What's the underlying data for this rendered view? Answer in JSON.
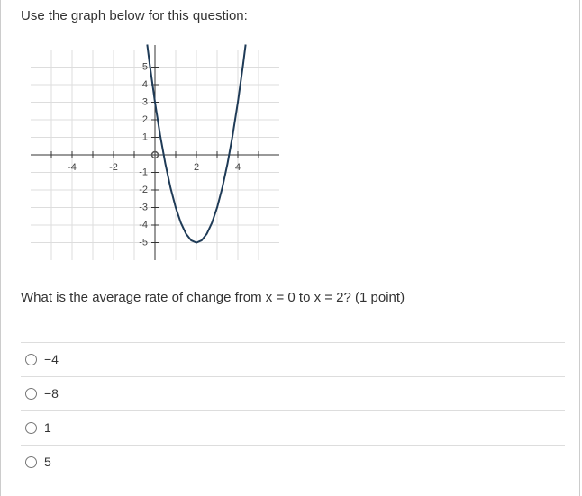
{
  "prompt": "Use the graph below for this question:",
  "graph": {
    "xlim": [
      -6,
      6
    ],
    "ylim": [
      -6,
      6
    ],
    "xticks": [
      -4,
      -2,
      2,
      4
    ],
    "yticks": [
      5,
      4,
      3,
      2,
      1,
      -1,
      -2,
      -3,
      -4,
      -5
    ],
    "grid": [
      -5,
      -4,
      -3,
      -2,
      -1,
      1,
      2,
      3,
      4,
      5
    ],
    "curve": {
      "x": [
        -0.375,
        -0.25,
        0,
        0.25,
        0.5,
        0.75,
        1,
        1.25,
        1.5,
        1.75,
        2,
        2.25,
        2.5,
        2.75,
        3,
        3.25,
        3.5,
        3.75,
        4,
        4.25,
        4.375
      ],
      "y": [
        6.28125,
        5.125,
        3,
        1.125,
        -0.5,
        -1.875,
        -3,
        -3.875,
        -4.5,
        -4.875,
        -5,
        -4.875,
        -4.5,
        -3.875,
        -3,
        -1.875,
        -0.5,
        1.125,
        3,
        5.125,
        6.28125
      ]
    }
  },
  "question": "What is the average rate of change from x = 0 to x = 2? (1 point)",
  "options": [
    "−4",
    "−8",
    "1",
    "5"
  ]
}
